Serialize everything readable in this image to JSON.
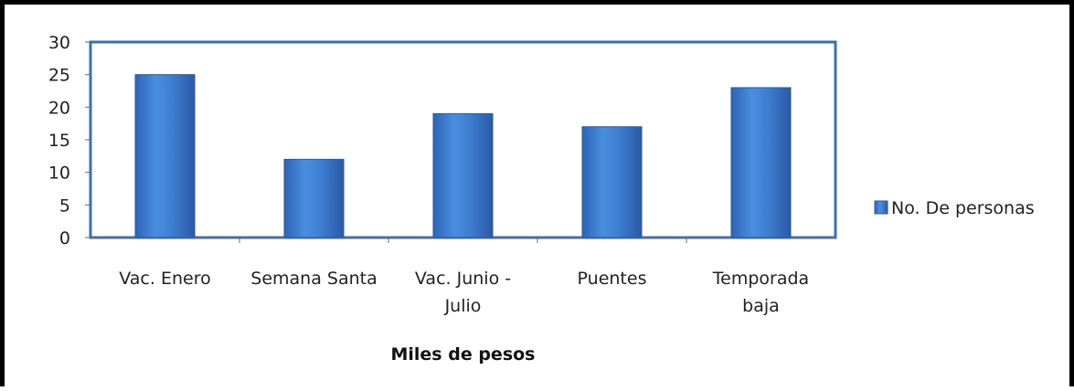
{
  "chart_data": {
    "type": "bar",
    "categories": [
      [
        "Vac. Enero"
      ],
      [
        "Semana Santa"
      ],
      [
        "Vac. Junio -",
        "Julio"
      ],
      [
        "Puentes"
      ],
      [
        "Temporada",
        "baja"
      ]
    ],
    "series": [
      {
        "name": "No. De personas",
        "values": [
          25,
          12,
          19,
          17,
          23
        ],
        "color": "#3f7fd2"
      }
    ],
    "title": "",
    "xlabel": "Miles de pesos",
    "ylabel": "",
    "ylim": [
      0,
      30
    ],
    "yticks": [
      0,
      5,
      10,
      15,
      20,
      25,
      30
    ],
    "grid": false,
    "legend_position": "right",
    "plot_border_color": "#3a6fb8"
  }
}
